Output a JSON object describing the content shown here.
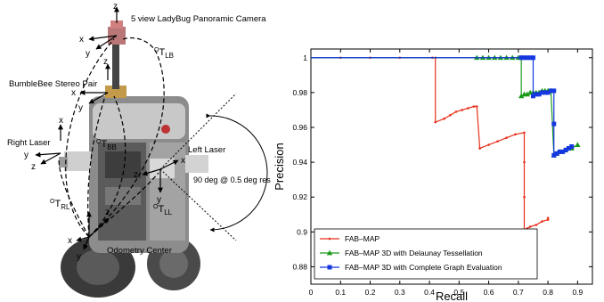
{
  "left_diagram": {
    "labels": {
      "ladybug": "5 view LadyBug Panoramic Camera",
      "bumblebee": "BumbleBee Stereo Pair",
      "right_laser": "Right Laser",
      "left_laser": "Left Laser",
      "laser_range": "90 deg @ 0.5 deg res",
      "odometry": "Odometry Center"
    },
    "frames": {
      "t_lb": {
        "prefix": "O",
        "main": "T",
        "sub": "LB"
      },
      "t_bb": {
        "prefix": "O",
        "main": "T",
        "sub": "BB"
      },
      "t_rl": {
        "prefix": "O",
        "main": "T",
        "sub": "RL"
      },
      "t_ll": {
        "prefix": "O",
        "main": "T",
        "sub": "LL"
      }
    },
    "axis_letters": {
      "x": "x",
      "y": "y",
      "z": "z"
    }
  },
  "chart_data": {
    "type": "line",
    "xlabel": "Recall",
    "ylabel": "Precision",
    "xlim": [
      0,
      0.95
    ],
    "ylim": [
      0.87,
      1.005
    ],
    "xticks": [
      0,
      0.1,
      0.2,
      0.3,
      0.4,
      0.5,
      0.6,
      0.7,
      0.8,
      0.9
    ],
    "yticks": [
      0.88,
      0.9,
      0.92,
      0.94,
      0.96,
      0.98,
      1
    ],
    "legend_position": "bottom-left",
    "colors": {
      "series1": "#e8301c",
      "series2": "#1a9a1a",
      "series3": "#1437e0"
    },
    "series": [
      {
        "name": "FAB–MAP",
        "marker": "dot",
        "x": [
          0,
          0.1,
          0.2,
          0.3,
          0.41,
          0.42,
          0.42,
          0.45,
          0.47,
          0.49,
          0.51,
          0.53,
          0.55,
          0.56,
          0.57,
          0.57,
          0.6,
          0.63,
          0.66,
          0.69,
          0.72,
          0.72,
          0.72,
          0.72,
          0.73,
          0.74,
          0.76,
          0.78,
          0.8,
          0.8
        ],
        "y": [
          1,
          1,
          1,
          1,
          1,
          1,
          0.963,
          0.965,
          0.967,
          0.969,
          0.97,
          0.971,
          0.972,
          0.972,
          0.948,
          0.948,
          0.95,
          0.952,
          0.954,
          0.956,
          0.957,
          0.94,
          0.92,
          0.9,
          0.902,
          0.903,
          0.904,
          0.906,
          0.907,
          0.908
        ]
      },
      {
        "name": "FAB–MAP 3D with Delaunay Tessellation",
        "marker": "triangle",
        "x": [
          0,
          0.56,
          0.58,
          0.6,
          0.62,
          0.64,
          0.66,
          0.68,
          0.7,
          0.71,
          0.71,
          0.72,
          0.73,
          0.74,
          0.75,
          0.76,
          0.77,
          0.78,
          0.79,
          0.8,
          0.81,
          0.82,
          0.83,
          0.84,
          0.86,
          0.88,
          0.9
        ],
        "y": [
          1,
          1,
          1,
          1,
          1,
          1,
          1,
          1,
          1,
          1,
          0.978,
          0.979,
          0.979,
          0.98,
          0.98,
          0.98,
          0.98,
          0.981,
          0.981,
          0.981,
          0.981,
          0.944,
          0.945,
          0.946,
          0.947,
          0.948,
          0.95
        ]
      },
      {
        "name": "FAB–MAP 3D with Complete Graph Evaluation",
        "marker": "square",
        "x": [
          0,
          0.71,
          0.72,
          0.73,
          0.74,
          0.75,
          0.75,
          0.76,
          0.77,
          0.78,
          0.79,
          0.8,
          0.81,
          0.82,
          0.82,
          0.82,
          0.83,
          0.84,
          0.85,
          0.86,
          0.87,
          0.88
        ],
        "y": [
          1,
          1,
          1,
          1,
          1,
          1,
          0.978,
          0.979,
          0.979,
          0.98,
          0.98,
          0.98,
          0.981,
          0.981,
          0.962,
          0.944,
          0.945,
          0.946,
          0.946,
          0.947,
          0.948,
          0.949
        ]
      }
    ]
  }
}
